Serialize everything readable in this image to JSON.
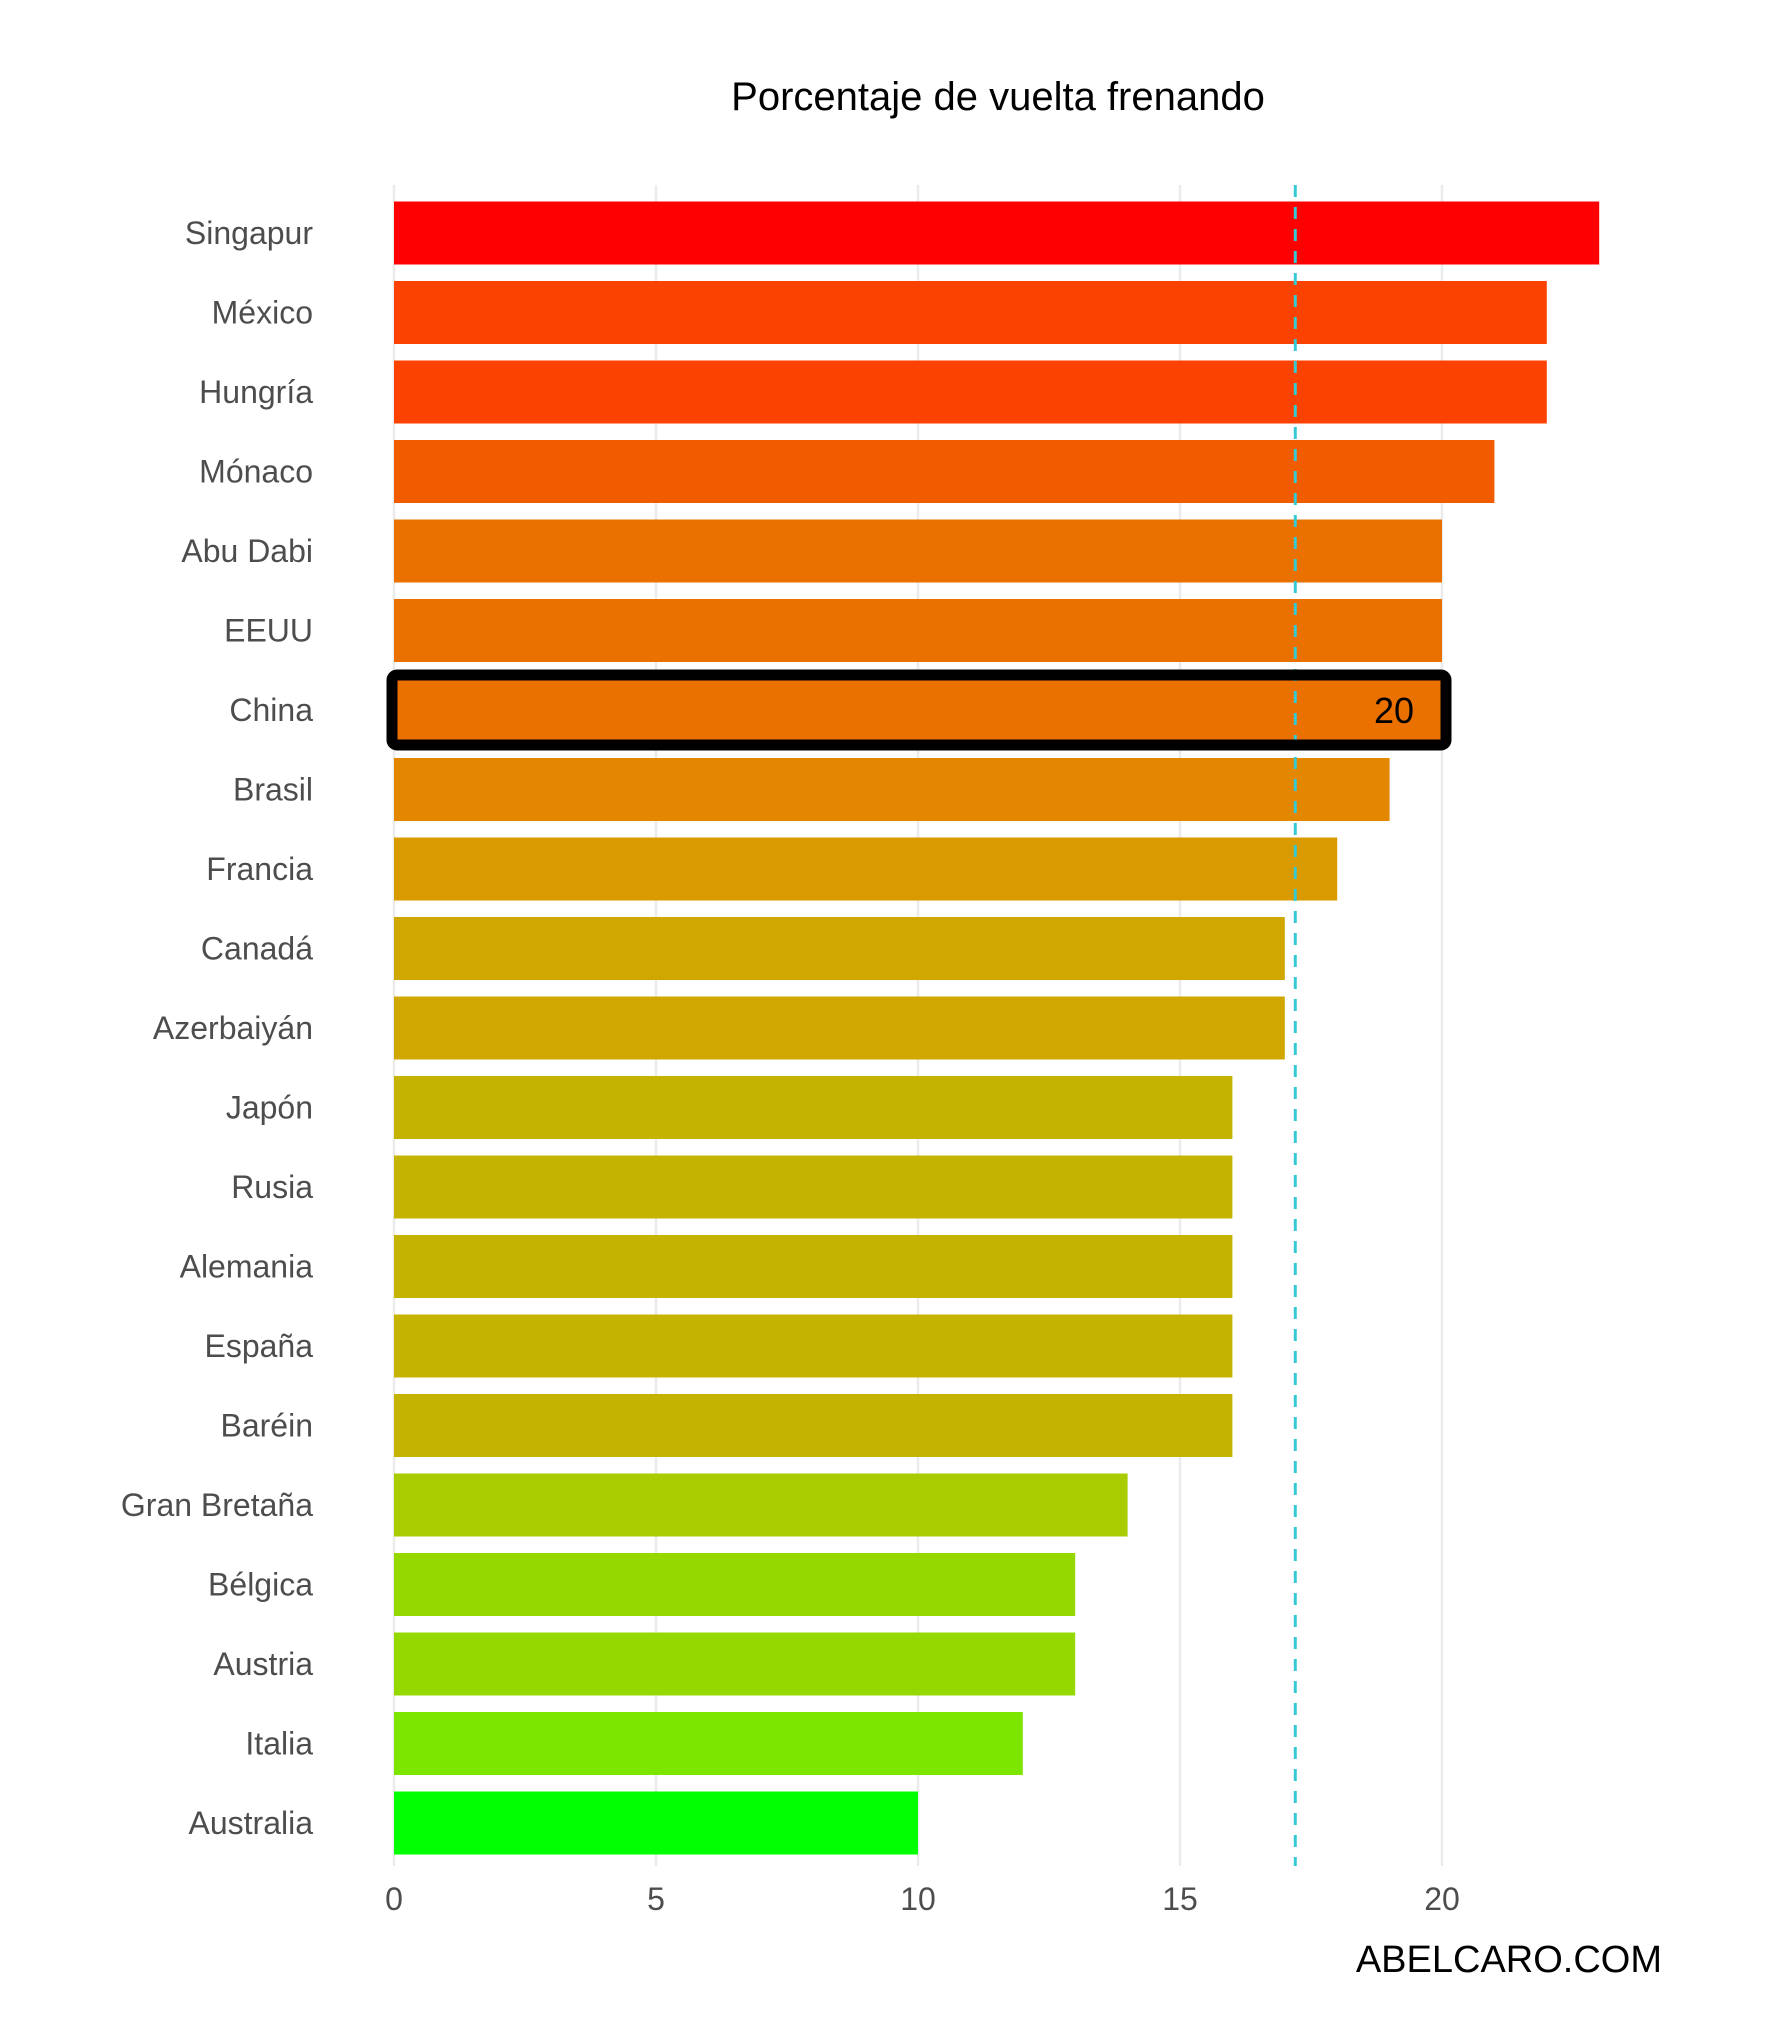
{
  "chart_data": {
    "type": "bar",
    "orientation": "horizontal",
    "title": "Porcentaje de vuelta frenando",
    "xlabel": "",
    "ylabel": "",
    "xlim": [
      0,
      23.5
    ],
    "x_ticks": [
      0,
      5,
      10,
      15,
      20
    ],
    "grid": "vertical-major",
    "legend": "none",
    "categories": [
      "Singapur",
      "México",
      "Hungría",
      "Mónaco",
      "Abu Dabi",
      "EEUU",
      "China",
      "Brasil",
      "Francia",
      "Canadá",
      "Azerbaiyán",
      "Japón",
      "Rusia",
      "Alemania",
      "España",
      "Baréin",
      "Gran Bretaña",
      "Bélgica",
      "Austria",
      "Italia",
      "Australia"
    ],
    "values": [
      23,
      22,
      22,
      21,
      20,
      20,
      20,
      19,
      18,
      17,
      17,
      16,
      16,
      16,
      16,
      16,
      14,
      13,
      13,
      12,
      10
    ],
    "colors": [
      "#ff0000",
      "#fc4200",
      "#fc4200",
      "#f25c00",
      "#ea7100",
      "#ea7100",
      "#ea7100",
      "#e38600",
      "#d99a00",
      "#cfa700",
      "#cfa700",
      "#c4b300",
      "#c4b300",
      "#c4b300",
      "#c4b300",
      "#c4b300",
      "#a9cc00",
      "#95d800",
      "#95d800",
      "#7ce600",
      "#00ff00"
    ],
    "highlight": {
      "category": "China",
      "label": "20",
      "border_color": "#000000"
    },
    "reference_line": {
      "value": 17.2,
      "style": "dashed",
      "color": "#36c9d3"
    },
    "watermark": "ABELCARO.COM"
  }
}
